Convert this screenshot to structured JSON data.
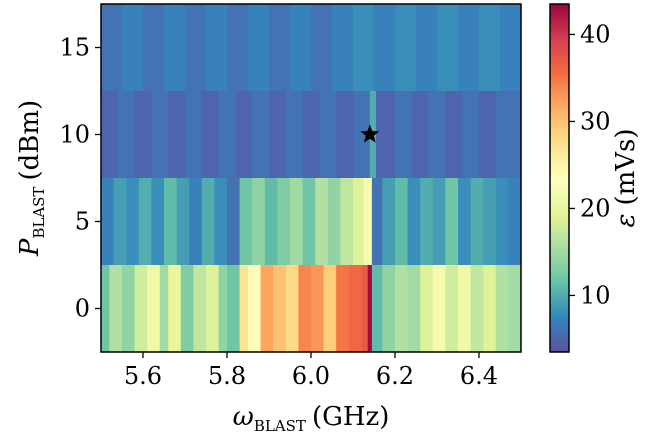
{
  "chart_data": {
    "type": "heatmap",
    "x_axis": {
      "symbol": "ω",
      "subscript": "BLAST",
      "unit": "(GHz)",
      "range": [
        5.5,
        6.5
      ],
      "ticks": [
        5.6,
        5.8,
        6.0,
        6.2,
        6.4
      ],
      "tick_labels": [
        "5.6",
        "5.8",
        "6.0",
        "6.2",
        "6.4"
      ]
    },
    "y_axis": {
      "symbol": "P",
      "subscript": "BLAST",
      "unit": "(dBm)",
      "range": [
        -2.5,
        17.5
      ],
      "ticks": [
        0,
        5,
        10,
        15
      ],
      "tick_labels": [
        "0",
        "5",
        "10",
        "15"
      ]
    },
    "colorbar": {
      "symbol": "ε",
      "unit": "(mVs)",
      "range": [
        3.5,
        43.5
      ],
      "ticks": [
        10,
        20,
        30,
        40
      ],
      "tick_labels": [
        "10",
        "20",
        "30",
        "40"
      ],
      "colormap": "Spectral_r"
    },
    "rows": [
      {
        "power": 0,
        "segments": [
          [
            5.5,
            5.52,
            12
          ],
          [
            5.52,
            5.55,
            16
          ],
          [
            5.55,
            5.58,
            14
          ],
          [
            5.58,
            5.61,
            18
          ],
          [
            5.61,
            5.64,
            21
          ],
          [
            5.64,
            5.66,
            15
          ],
          [
            5.66,
            5.69,
            20
          ],
          [
            5.69,
            5.72,
            13
          ],
          [
            5.72,
            5.75,
            17
          ],
          [
            5.75,
            5.78,
            19
          ],
          [
            5.78,
            5.8,
            14
          ],
          [
            5.8,
            5.83,
            12
          ],
          [
            5.83,
            5.85,
            27
          ],
          [
            5.85,
            5.88,
            24
          ],
          [
            5.88,
            5.91,
            32
          ],
          [
            5.91,
            5.94,
            30
          ],
          [
            5.94,
            5.97,
            28
          ],
          [
            5.97,
            6.0,
            34
          ],
          [
            6.0,
            6.03,
            33
          ],
          [
            6.03,
            6.06,
            29
          ],
          [
            6.06,
            6.09,
            35
          ],
          [
            6.09,
            6.12,
            36
          ],
          [
            6.12,
            6.135,
            37
          ],
          [
            6.135,
            6.145,
            43
          ],
          [
            6.145,
            6.17,
            11
          ],
          [
            6.17,
            6.2,
            14
          ],
          [
            6.2,
            6.23,
            16
          ],
          [
            6.23,
            6.26,
            15
          ],
          [
            6.26,
            6.29,
            19
          ],
          [
            6.29,
            6.32,
            22
          ],
          [
            6.32,
            6.35,
            18
          ],
          [
            6.35,
            6.38,
            21
          ],
          [
            6.38,
            6.41,
            17
          ],
          [
            6.41,
            6.44,
            19
          ],
          [
            6.44,
            6.47,
            16
          ],
          [
            6.47,
            6.5,
            15
          ]
        ]
      },
      {
        "power": 5,
        "segments": [
          [
            5.5,
            5.53,
            7
          ],
          [
            5.53,
            5.56,
            9
          ],
          [
            5.56,
            5.59,
            8
          ],
          [
            5.59,
            5.62,
            10
          ],
          [
            5.62,
            5.65,
            8
          ],
          [
            5.65,
            5.68,
            11
          ],
          [
            5.68,
            5.71,
            9
          ],
          [
            5.71,
            5.74,
            7
          ],
          [
            5.74,
            5.77,
            10
          ],
          [
            5.77,
            5.8,
            8
          ],
          [
            5.8,
            5.83,
            6
          ],
          [
            5.83,
            5.86,
            12
          ],
          [
            5.86,
            5.89,
            14
          ],
          [
            5.89,
            5.92,
            11
          ],
          [
            5.92,
            5.95,
            13
          ],
          [
            5.95,
            5.98,
            15
          ],
          [
            5.98,
            6.01,
            12
          ],
          [
            6.01,
            6.04,
            16
          ],
          [
            6.04,
            6.07,
            14
          ],
          [
            6.07,
            6.1,
            17
          ],
          [
            6.1,
            6.125,
            19
          ],
          [
            6.125,
            6.145,
            22
          ],
          [
            6.145,
            6.17,
            6
          ],
          [
            6.17,
            6.2,
            9
          ],
          [
            6.2,
            6.23,
            11
          ],
          [
            6.23,
            6.26,
            8
          ],
          [
            6.26,
            6.29,
            10
          ],
          [
            6.29,
            6.32,
            9
          ],
          [
            6.32,
            6.35,
            12
          ],
          [
            6.35,
            6.38,
            8
          ],
          [
            6.38,
            6.41,
            10
          ],
          [
            6.41,
            6.44,
            9
          ],
          [
            6.44,
            6.47,
            8
          ],
          [
            6.47,
            6.5,
            7
          ]
        ]
      },
      {
        "power": 10,
        "segments": [
          [
            5.5,
            5.54,
            5
          ],
          [
            5.54,
            5.58,
            6
          ],
          [
            5.58,
            5.62,
            5
          ],
          [
            5.62,
            5.66,
            6
          ],
          [
            5.66,
            5.7,
            5
          ],
          [
            5.7,
            5.74,
            6
          ],
          [
            5.74,
            5.78,
            5
          ],
          [
            5.78,
            5.82,
            6
          ],
          [
            5.82,
            5.86,
            5
          ],
          [
            5.86,
            5.9,
            6
          ],
          [
            5.9,
            5.94,
            5
          ],
          [
            5.94,
            5.98,
            6
          ],
          [
            5.98,
            6.02,
            5
          ],
          [
            6.02,
            6.06,
            6
          ],
          [
            6.06,
            6.1,
            5
          ],
          [
            6.1,
            6.14,
            6
          ],
          [
            6.14,
            6.155,
            10
          ],
          [
            6.155,
            6.2,
            5
          ],
          [
            6.2,
            6.24,
            6
          ],
          [
            6.24,
            6.28,
            5
          ],
          [
            6.28,
            6.32,
            6
          ],
          [
            6.32,
            6.36,
            5
          ],
          [
            6.36,
            6.4,
            6
          ],
          [
            6.4,
            6.44,
            5
          ],
          [
            6.44,
            6.5,
            6
          ]
        ]
      },
      {
        "power": 15,
        "segments": [
          [
            5.5,
            5.55,
            6
          ],
          [
            5.55,
            5.6,
            7
          ],
          [
            5.6,
            5.65,
            6
          ],
          [
            5.65,
            5.7,
            7
          ],
          [
            5.7,
            5.75,
            6
          ],
          [
            5.75,
            5.8,
            7
          ],
          [
            5.8,
            5.85,
            6
          ],
          [
            5.85,
            5.9,
            7
          ],
          [
            5.9,
            5.95,
            6
          ],
          [
            5.95,
            6.0,
            7
          ],
          [
            6.0,
            6.05,
            6
          ],
          [
            6.05,
            6.1,
            7
          ],
          [
            6.1,
            6.15,
            8
          ],
          [
            6.15,
            6.2,
            7
          ],
          [
            6.2,
            6.25,
            8
          ],
          [
            6.25,
            6.3,
            7
          ],
          [
            6.3,
            6.35,
            8
          ],
          [
            6.35,
            6.4,
            7
          ],
          [
            6.4,
            6.45,
            8
          ],
          [
            6.45,
            6.5,
            7
          ]
        ]
      }
    ],
    "marker": {
      "x": 6.14,
      "y": 10,
      "shape": "star",
      "color": "#000000"
    }
  }
}
